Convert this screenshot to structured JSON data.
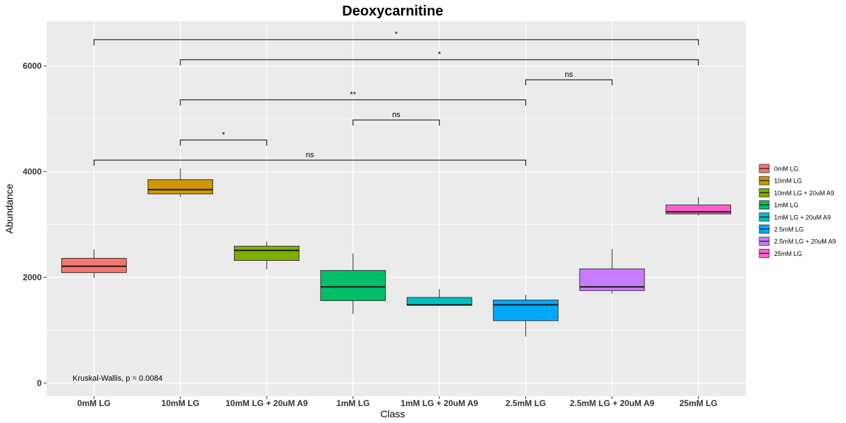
{
  "chart_data": {
    "type": "box",
    "title": "Deoxycarnitine",
    "xlabel": "Class",
    "ylabel": "Abundance",
    "ylim": [
      -250,
      6850
    ],
    "y_ticks": [
      0,
      2000,
      4000,
      6000
    ],
    "y_tick_labels": [
      "0",
      "2000",
      "4000",
      "6000"
    ],
    "grid": true,
    "legend_position": "right",
    "categories": [
      "0mM LG",
      "10mM LG",
      "10mM LG + 20uM A9",
      "1mM LG",
      "1mM LG + 20uM A9",
      "2.5mM LG",
      "2.5mM LG + 20uM A9",
      "25mM LG"
    ],
    "legend_labels": [
      "0mM LG",
      "10mM LG",
      "10mM LG + 20uM A9",
      "1mM LG",
      "1mM LG + 20uM A9",
      "2.5mM LG",
      "2.5mM LG + 20uM A9",
      "25mM LG"
    ],
    "colors": [
      "#F8766D",
      "#CD9600",
      "#7CAE00",
      "#00BE67",
      "#00BFC4",
      "#00A9FF",
      "#C77CFF",
      "#FF61CC"
    ],
    "boxes": [
      {
        "min": 1990,
        "q1": 2090,
        "median": 2210,
        "q3": 2360,
        "max": 2530
      },
      {
        "min": 3520,
        "q1": 3580,
        "median": 3660,
        "q3": 3850,
        "max": 4060
      },
      {
        "min": 2150,
        "q1": 2320,
        "median": 2510,
        "q3": 2590,
        "max": 2680
      },
      {
        "min": 1310,
        "q1": 1560,
        "median": 1820,
        "q3": 2130,
        "max": 2450
      },
      {
        "min": 1460,
        "q1": 1470,
        "median": 1480,
        "q3": 1620,
        "max": 1780
      },
      {
        "min": 880,
        "q1": 1180,
        "median": 1480,
        "q3": 1570,
        "max": 1670
      },
      {
        "min": 1690,
        "q1": 1750,
        "median": 1820,
        "q3": 2160,
        "max": 2540
      },
      {
        "min": 3170,
        "q1": 3200,
        "median": 3240,
        "q3": 3370,
        "max": 3520
      }
    ],
    "comparisons": [
      {
        "from": 0,
        "to": 5,
        "y": 4220,
        "label": "ns"
      },
      {
        "from": 1,
        "to": 2,
        "y": 4600,
        "label": "*"
      },
      {
        "from": 3,
        "to": 4,
        "y": 4980,
        "label": "ns"
      },
      {
        "from": 1,
        "to": 5,
        "y": 5360,
        "label": "**"
      },
      {
        "from": 5,
        "to": 6,
        "y": 5740,
        "label": "ns"
      },
      {
        "from": 1,
        "to": 7,
        "y": 6120,
        "label": "*"
      },
      {
        "from": 0,
        "to": 7,
        "y": 6500,
        "label": "*"
      }
    ],
    "annotation": "Kruskal-Wallis, p = 0.0084"
  }
}
